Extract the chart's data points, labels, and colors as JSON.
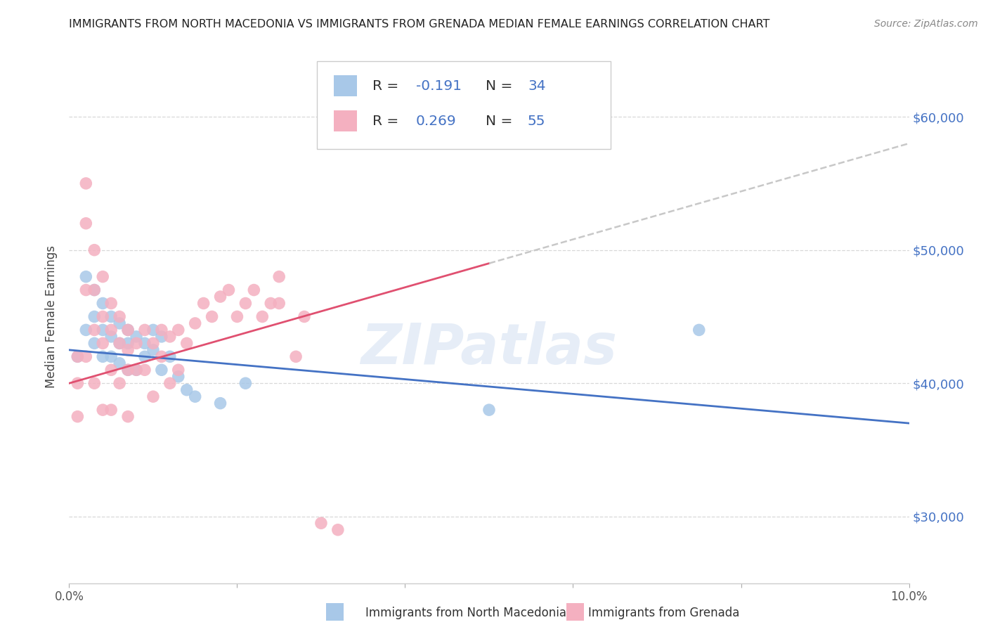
{
  "title": "IMMIGRANTS FROM NORTH MACEDONIA VS IMMIGRANTS FROM GRENADA MEDIAN FEMALE EARNINGS CORRELATION CHART",
  "source": "Source: ZipAtlas.com",
  "ylabel": "Median Female Earnings",
  "xlim": [
    0.0,
    0.1
  ],
  "ylim": [
    25000,
    65000
  ],
  "yticks": [
    30000,
    40000,
    50000,
    60000
  ],
  "ytick_labels": [
    "$30,000",
    "$40,000",
    "$50,000",
    "$60,000"
  ],
  "xticks": [
    0.0,
    0.02,
    0.04,
    0.06,
    0.08,
    0.1
  ],
  "xtick_labels": [
    "0.0%",
    "",
    "",
    "",
    "",
    "10.0%"
  ],
  "legend_r1_val": "-0.191",
  "legend_n1_val": "34",
  "legend_r2_val": "0.269",
  "legend_n2_val": "55",
  "color_blue_scatter": "#a8c8e8",
  "color_pink_scatter": "#f4b0c0",
  "color_blue_line": "#4472c4",
  "color_pink_line": "#e05070",
  "color_dashed": "#c8c8c8",
  "color_right_label": "#4472c4",
  "color_title": "#222222",
  "color_source": "#888888",
  "watermark": "ZIPatlas",
  "nm_x": [
    0.001,
    0.002,
    0.002,
    0.003,
    0.003,
    0.003,
    0.004,
    0.004,
    0.004,
    0.005,
    0.005,
    0.005,
    0.006,
    0.006,
    0.006,
    0.007,
    0.007,
    0.007,
    0.008,
    0.008,
    0.009,
    0.009,
    0.01,
    0.01,
    0.011,
    0.011,
    0.012,
    0.013,
    0.014,
    0.015,
    0.018,
    0.021,
    0.05,
    0.075
  ],
  "nm_y": [
    42000,
    48000,
    44000,
    47000,
    45000,
    43000,
    46000,
    44000,
    42000,
    45000,
    43500,
    42000,
    44500,
    43000,
    41500,
    44000,
    43000,
    41000,
    43500,
    41000,
    43000,
    42000,
    44000,
    42500,
    43500,
    41000,
    42000,
    40500,
    39500,
    39000,
    38500,
    40000,
    38000,
    44000
  ],
  "gr_x": [
    0.001,
    0.001,
    0.001,
    0.002,
    0.002,
    0.002,
    0.002,
    0.003,
    0.003,
    0.003,
    0.003,
    0.004,
    0.004,
    0.004,
    0.004,
    0.005,
    0.005,
    0.005,
    0.005,
    0.006,
    0.006,
    0.006,
    0.007,
    0.007,
    0.007,
    0.007,
    0.008,
    0.008,
    0.009,
    0.009,
    0.01,
    0.01,
    0.011,
    0.011,
    0.012,
    0.012,
    0.013,
    0.013,
    0.014,
    0.015,
    0.016,
    0.017,
    0.018,
    0.019,
    0.02,
    0.021,
    0.022,
    0.023,
    0.024,
    0.025,
    0.027,
    0.028,
    0.03,
    0.032,
    0.025
  ],
  "gr_y": [
    42000,
    40000,
    37500,
    55000,
    52000,
    47000,
    42000,
    50000,
    47000,
    44000,
    40000,
    48000,
    45000,
    43000,
    38000,
    46000,
    44000,
    41000,
    38000,
    45000,
    43000,
    40000,
    44000,
    42500,
    41000,
    37500,
    43000,
    41000,
    44000,
    41000,
    43000,
    39000,
    44000,
    42000,
    43500,
    40000,
    44000,
    41000,
    43000,
    44500,
    46000,
    45000,
    46500,
    47000,
    45000,
    46000,
    47000,
    45000,
    46000,
    48000,
    42000,
    45000,
    29500,
    29000,
    46000
  ]
}
